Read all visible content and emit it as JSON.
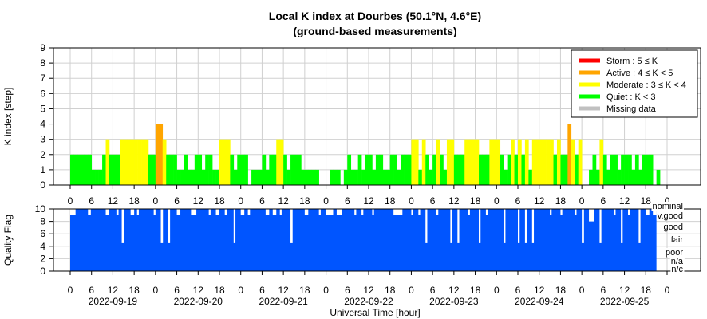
{
  "title": "Local K index at Dourbes (50.1°N, 4.6°E)",
  "subtitle": "(ground-based measurements)",
  "xlabel": "Universal Time [hour]",
  "hour_ticks": [
    "0",
    "6",
    "12",
    "18"
  ],
  "final_tick": "0",
  "dates": [
    "2022-09-19",
    "2022-09-20",
    "2022-09-21",
    "2022-09-22",
    "2022-09-23",
    "2022-09-24",
    "2022-09-25"
  ],
  "legend": [
    {
      "label": "Storm : 5 ≤ K",
      "color": "#ff0000"
    },
    {
      "label": "Active : 4 ≤ K < 5",
      "color": "#ffa500"
    },
    {
      "label": "Moderate : 3 ≤ K < 4",
      "color": "#ffff00"
    },
    {
      "label": "Quiet : K < 3",
      "color": "#00ff00"
    },
    {
      "label": "Missing data",
      "color": "#c0c0c0"
    }
  ],
  "quality_labels": [
    "nominal",
    "v.good",
    "good",
    "fair",
    "poor",
    "n/a",
    "n/c"
  ],
  "chart_data": [
    {
      "type": "bar",
      "name": "K index",
      "ylabel": "K index [step]",
      "ylim": [
        0,
        9
      ],
      "yticks": [
        0,
        1,
        2,
        3,
        4,
        5,
        6,
        7,
        8,
        9
      ],
      "grid": true,
      "legend_position": "top-right",
      "x_unit": "hours since 2022-09-19 00:00 UT",
      "xlim": [
        0,
        168
      ],
      "bars": [
        {
          "x": 0,
          "w": 1,
          "k": 2
        },
        {
          "x": 1,
          "w": 1,
          "k": 2
        },
        {
          "x": 2,
          "w": 1,
          "k": 2
        },
        {
          "x": 3,
          "w": 1,
          "k": 2
        },
        {
          "x": 4,
          "w": 1,
          "k": 2
        },
        {
          "x": 5,
          "w": 1,
          "k": 2
        },
        {
          "x": 6,
          "w": 1,
          "k": 1
        },
        {
          "x": 7,
          "w": 1,
          "k": 1
        },
        {
          "x": 8,
          "w": 1,
          "k": 1
        },
        {
          "x": 9,
          "w": 1,
          "k": 2
        },
        {
          "x": 10,
          "w": 1,
          "k": 3
        },
        {
          "x": 11,
          "w": 1,
          "k": 2
        },
        {
          "x": 12,
          "w": 1,
          "k": 2
        },
        {
          "x": 13,
          "w": 1,
          "k": 2
        },
        {
          "x": 14,
          "w": 1,
          "k": 3
        },
        {
          "x": 15,
          "w": 1,
          "k": 3
        },
        {
          "x": 16,
          "w": 1,
          "k": 3
        },
        {
          "x": 17,
          "w": 1,
          "k": 3
        },
        {
          "x": 18,
          "w": 1,
          "k": 3
        },
        {
          "x": 19,
          "w": 1,
          "k": 3
        },
        {
          "x": 20,
          "w": 1,
          "k": 3
        },
        {
          "x": 21,
          "w": 1,
          "k": 3
        },
        {
          "x": 22,
          "w": 1,
          "k": 2
        },
        {
          "x": 23,
          "w": 1,
          "k": 2
        },
        {
          "x": 24,
          "w": 1,
          "k": 4
        },
        {
          "x": 25,
          "w": 1,
          "k": 4
        },
        {
          "x": 26,
          "w": 1,
          "k": 3
        },
        {
          "x": 27,
          "w": 1,
          "k": 2
        },
        {
          "x": 28,
          "w": 1,
          "k": 2
        },
        {
          "x": 29,
          "w": 1,
          "k": 2
        },
        {
          "x": 30,
          "w": 1,
          "k": 1
        },
        {
          "x": 31,
          "w": 1,
          "k": 1
        },
        {
          "x": 32,
          "w": 1,
          "k": 2
        },
        {
          "x": 33,
          "w": 1,
          "k": 1
        },
        {
          "x": 34,
          "w": 1,
          "k": 1
        },
        {
          "x": 35,
          "w": 1,
          "k": 2
        },
        {
          "x": 36,
          "w": 1,
          "k": 2
        },
        {
          "x": 37,
          "w": 1,
          "k": 1
        },
        {
          "x": 38,
          "w": 1,
          "k": 2
        },
        {
          "x": 39,
          "w": 1,
          "k": 2
        },
        {
          "x": 40,
          "w": 1,
          "k": 1
        },
        {
          "x": 41,
          "w": 1,
          "k": 1
        },
        {
          "x": 42,
          "w": 1,
          "k": 3
        },
        {
          "x": 43,
          "w": 1,
          "k": 3
        },
        {
          "x": 44,
          "w": 1,
          "k": 3
        },
        {
          "x": 45,
          "w": 1,
          "k": 2
        },
        {
          "x": 46,
          "w": 1,
          "k": 1
        },
        {
          "x": 47,
          "w": 1,
          "k": 2
        },
        {
          "x": 48,
          "w": 1,
          "k": 2
        },
        {
          "x": 49,
          "w": 1,
          "k": 2
        },
        {
          "x": 50,
          "w": 1,
          "k": 0
        },
        {
          "x": 51,
          "w": 1,
          "k": 1
        },
        {
          "x": 52,
          "w": 1,
          "k": 1
        },
        {
          "x": 53,
          "w": 1,
          "k": 1
        },
        {
          "x": 54,
          "w": 1,
          "k": 2
        },
        {
          "x": 55,
          "w": 1,
          "k": 1
        },
        {
          "x": 56,
          "w": 1,
          "k": 2
        },
        {
          "x": 57,
          "w": 1,
          "k": 2
        },
        {
          "x": 58,
          "w": 1,
          "k": 3
        },
        {
          "x": 59,
          "w": 1,
          "k": 3
        },
        {
          "x": 60,
          "w": 1,
          "k": 2
        },
        {
          "x": 61,
          "w": 1,
          "k": 1
        },
        {
          "x": 62,
          "w": 1,
          "k": 2
        },
        {
          "x": 63,
          "w": 1,
          "k": 2
        },
        {
          "x": 64,
          "w": 1,
          "k": 2
        },
        {
          "x": 65,
          "w": 1,
          "k": 1
        },
        {
          "x": 66,
          "w": 1,
          "k": 1
        },
        {
          "x": 67,
          "w": 1,
          "k": 1
        },
        {
          "x": 68,
          "w": 1,
          "k": 1
        },
        {
          "x": 69,
          "w": 1,
          "k": 1
        },
        {
          "x": 70,
          "w": 1,
          "k": 0
        },
        {
          "x": 71,
          "w": 1,
          "k": 0
        },
        {
          "x": 72,
          "w": 1,
          "k": 0
        },
        {
          "x": 73,
          "w": 1,
          "k": 1
        },
        {
          "x": 74,
          "w": 1,
          "k": 1
        },
        {
          "x": 75,
          "w": 1,
          "k": 1
        },
        {
          "x": 76,
          "w": 1,
          "k": 0
        },
        {
          "x": 77,
          "w": 1,
          "k": 1
        },
        {
          "x": 78,
          "w": 1,
          "k": 2
        },
        {
          "x": 79,
          "w": 1,
          "k": 1
        },
        {
          "x": 80,
          "w": 1,
          "k": 1
        },
        {
          "x": 81,
          "w": 1,
          "k": 2
        },
        {
          "x": 82,
          "w": 1,
          "k": 1
        },
        {
          "x": 83,
          "w": 1,
          "k": 2
        },
        {
          "x": 84,
          "w": 1,
          "k": 2
        },
        {
          "x": 85,
          "w": 1,
          "k": 1
        },
        {
          "x": 86,
          "w": 1,
          "k": 2
        },
        {
          "x": 87,
          "w": 1,
          "k": 2
        },
        {
          "x": 88,
          "w": 1,
          "k": 1
        },
        {
          "x": 89,
          "w": 1,
          "k": 1
        },
        {
          "x": 90,
          "w": 1,
          "k": 2
        },
        {
          "x": 91,
          "w": 1,
          "k": 2
        },
        {
          "x": 92,
          "w": 1,
          "k": 1
        },
        {
          "x": 93,
          "w": 1,
          "k": 2
        },
        {
          "x": 94,
          "w": 1,
          "k": 2
        },
        {
          "x": 95,
          "w": 1,
          "k": 2
        },
        {
          "x": 96,
          "w": 1,
          "k": 3
        },
        {
          "x": 97,
          "w": 1,
          "k": 3
        },
        {
          "x": 98,
          "w": 1,
          "k": 1
        },
        {
          "x": 99,
          "w": 1,
          "k": 3
        },
        {
          "x": 100,
          "w": 1,
          "k": 2
        },
        {
          "x": 101,
          "w": 1,
          "k": 1
        },
        {
          "x": 102,
          "w": 1,
          "k": 2
        },
        {
          "x": 103,
          "w": 1,
          "k": 3
        },
        {
          "x": 104,
          "w": 1,
          "k": 2
        },
        {
          "x": 105,
          "w": 1,
          "k": 1
        },
        {
          "x": 106,
          "w": 1,
          "k": 3
        },
        {
          "x": 107,
          "w": 1,
          "k": 3
        },
        {
          "x": 108,
          "w": 1,
          "k": 2
        },
        {
          "x": 109,
          "w": 1,
          "k": 2
        },
        {
          "x": 110,
          "w": 1,
          "k": 2
        },
        {
          "x": 111,
          "w": 1,
          "k": 3
        },
        {
          "x": 112,
          "w": 1,
          "k": 3
        },
        {
          "x": 113,
          "w": 1,
          "k": 3
        },
        {
          "x": 114,
          "w": 1,
          "k": 3
        },
        {
          "x": 115,
          "w": 1,
          "k": 2
        },
        {
          "x": 116,
          "w": 1,
          "k": 2
        },
        {
          "x": 117,
          "w": 1,
          "k": 2
        },
        {
          "x": 118,
          "w": 1,
          "k": 3
        },
        {
          "x": 119,
          "w": 1,
          "k": 3
        },
        {
          "x": 120,
          "w": 1,
          "k": 3
        },
        {
          "x": 121,
          "w": 1,
          "k": 2
        },
        {
          "x": 122,
          "w": 1,
          "k": 1
        },
        {
          "x": 123,
          "w": 1,
          "k": 2
        },
        {
          "x": 124,
          "w": 1,
          "k": 3
        },
        {
          "x": 125,
          "w": 1,
          "k": 2
        },
        {
          "x": 126,
          "w": 1,
          "k": 3
        },
        {
          "x": 127,
          "w": 1,
          "k": 2
        },
        {
          "x": 128,
          "w": 1,
          "k": 3
        },
        {
          "x": 129,
          "w": 1,
          "k": 1
        },
        {
          "x": 130,
          "w": 1,
          "k": 3
        },
        {
          "x": 131,
          "w": 1,
          "k": 3
        },
        {
          "x": 132,
          "w": 1,
          "k": 3
        },
        {
          "x": 133,
          "w": 1,
          "k": 3
        },
        {
          "x": 134,
          "w": 1,
          "k": 3
        },
        {
          "x": 135,
          "w": 1,
          "k": 3
        },
        {
          "x": 136,
          "w": 1,
          "k": 2
        },
        {
          "x": 137,
          "w": 1,
          "k": 3
        },
        {
          "x": 138,
          "w": 1,
          "k": 2
        },
        {
          "x": 139,
          "w": 1,
          "k": 2
        },
        {
          "x": 140,
          "w": 1,
          "k": 4
        },
        {
          "x": 141,
          "w": 1,
          "k": 3
        },
        {
          "x": 142,
          "w": 1,
          "k": 2
        },
        {
          "x": 143,
          "w": 1,
          "k": 3
        },
        {
          "x": 144,
          "w": 1,
          "k": 0
        },
        {
          "x": 145,
          "w": 1,
          "k": 0
        },
        {
          "x": 146,
          "w": 1,
          "k": 1
        },
        {
          "x": 147,
          "w": 1,
          "k": 2
        },
        {
          "x": 148,
          "w": 1,
          "k": 1
        },
        {
          "x": 149,
          "w": 1,
          "k": 3
        },
        {
          "x": 150,
          "w": 1,
          "k": 2
        },
        {
          "x": 151,
          "w": 1,
          "k": 1
        },
        {
          "x": 152,
          "w": 1,
          "k": 2
        },
        {
          "x": 153,
          "w": 1,
          "k": 2
        },
        {
          "x": 154,
          "w": 1,
          "k": 1
        },
        {
          "x": 155,
          "w": 1,
          "k": 2
        },
        {
          "x": 156,
          "w": 1,
          "k": 2
        },
        {
          "x": 157,
          "w": 1,
          "k": 2
        },
        {
          "x": 158,
          "w": 1,
          "k": 1
        },
        {
          "x": 159,
          "w": 1,
          "k": 2
        },
        {
          "x": 160,
          "w": 1,
          "k": 1
        },
        {
          "x": 161,
          "w": 1,
          "k": 2
        },
        {
          "x": 162,
          "w": 1,
          "k": 2
        },
        {
          "x": 163,
          "w": 1,
          "k": 2
        },
        {
          "x": 164,
          "w": 1,
          "k": 0
        },
        {
          "x": 165,
          "w": 1,
          "k": 1
        },
        {
          "x": 166,
          "w": 1,
          "k": 0
        },
        {
          "x": 167,
          "w": 1,
          "k": 0
        }
      ]
    },
    {
      "type": "area",
      "name": "Quality Flag",
      "ylabel": "Quality Flag",
      "ylim": [
        0,
        10
      ],
      "yticks": [
        0,
        2,
        4,
        6,
        8,
        10
      ],
      "grid": true,
      "x_unit": "hours since 2022-09-19 00:00 UT",
      "xlim": [
        0,
        168
      ],
      "color": "#0055ff",
      "series_start": 0,
      "series_end": 165,
      "base_value": 10,
      "dips": [
        {
          "x": 0,
          "w": 1.5,
          "v": 9
        },
        {
          "x": 5,
          "w": 0.8,
          "v": 9
        },
        {
          "x": 10,
          "w": 1,
          "v": 9
        },
        {
          "x": 13,
          "w": 0.6,
          "v": 9
        },
        {
          "x": 14.5,
          "w": 0.6,
          "v": 4.5
        },
        {
          "x": 17,
          "w": 1,
          "v": 9
        },
        {
          "x": 18.8,
          "w": 0.5,
          "v": 9
        },
        {
          "x": 23.5,
          "w": 0.5,
          "v": 9
        },
        {
          "x": 25.5,
          "w": 0.6,
          "v": 4.5
        },
        {
          "x": 27.5,
          "w": 0.6,
          "v": 4.5
        },
        {
          "x": 30,
          "w": 1,
          "v": 9
        },
        {
          "x": 34,
          "w": 1.5,
          "v": 9
        },
        {
          "x": 39,
          "w": 0.5,
          "v": 9
        },
        {
          "x": 41,
          "w": 1,
          "v": 9
        },
        {
          "x": 43.5,
          "w": 0.6,
          "v": 9
        },
        {
          "x": 46,
          "w": 0.5,
          "v": 4.5
        },
        {
          "x": 48,
          "w": 1,
          "v": 9
        },
        {
          "x": 50,
          "w": 0.6,
          "v": 9
        },
        {
          "x": 55,
          "w": 1,
          "v": 9
        },
        {
          "x": 57,
          "w": 1,
          "v": 9
        },
        {
          "x": 59,
          "w": 0.5,
          "v": 9
        },
        {
          "x": 62,
          "w": 0.6,
          "v": 4.5
        },
        {
          "x": 66,
          "w": 1,
          "v": 9
        },
        {
          "x": 70,
          "w": 0.5,
          "v": 9
        },
        {
          "x": 72,
          "w": 2,
          "v": 9
        },
        {
          "x": 75,
          "w": 1.5,
          "v": 9
        },
        {
          "x": 80,
          "w": 0.5,
          "v": 9
        },
        {
          "x": 82,
          "w": 0.5,
          "v": 9
        },
        {
          "x": 85,
          "w": 0.5,
          "v": 9
        },
        {
          "x": 91,
          "w": 2,
          "v": 9
        },
        {
          "x": 93,
          "w": 0.5,
          "v": 9
        },
        {
          "x": 96,
          "w": 0.5,
          "v": 9
        },
        {
          "x": 98,
          "w": 0.5,
          "v": 9
        },
        {
          "x": 100,
          "w": 0.5,
          "v": 4.5
        },
        {
          "x": 103,
          "w": 0.6,
          "v": 9
        },
        {
          "x": 107,
          "w": 0.5,
          "v": 4.5
        },
        {
          "x": 109,
          "w": 0.5,
          "v": 4.5
        },
        {
          "x": 112,
          "w": 0.5,
          "v": 9
        },
        {
          "x": 115,
          "w": 0.5,
          "v": 4.5
        },
        {
          "x": 117,
          "w": 0.5,
          "v": 9
        },
        {
          "x": 122,
          "w": 0.5,
          "v": 4.5
        },
        {
          "x": 126,
          "w": 0.5,
          "v": 4.5
        },
        {
          "x": 128,
          "w": 0.5,
          "v": 4.5
        },
        {
          "x": 130,
          "w": 0.5,
          "v": 4.5
        },
        {
          "x": 135,
          "w": 0.5,
          "v": 9
        },
        {
          "x": 138,
          "w": 0.5,
          "v": 9
        },
        {
          "x": 142,
          "w": 0.5,
          "v": 9
        },
        {
          "x": 144,
          "w": 0.6,
          "v": 4.5
        },
        {
          "x": 146,
          "w": 1.5,
          "v": 8
        },
        {
          "x": 149,
          "w": 0.5,
          "v": 4.5
        },
        {
          "x": 153,
          "w": 0.5,
          "v": 9
        },
        {
          "x": 155,
          "w": 0.5,
          "v": 4.5
        },
        {
          "x": 157,
          "w": 0.5,
          "v": 9
        },
        {
          "x": 160,
          "w": 0.5,
          "v": 4.5
        },
        {
          "x": 162,
          "w": 1,
          "v": 9
        },
        {
          "x": 164,
          "w": 1,
          "v": 9
        }
      ]
    }
  ],
  "colors": {
    "storm": "#ff0000",
    "active": "#ffa500",
    "moderate": "#ffff00",
    "quiet": "#00ff00",
    "missing": "#c0c0c0",
    "quality_fill": "#0055ff",
    "grid": "#d0d0d0"
  }
}
